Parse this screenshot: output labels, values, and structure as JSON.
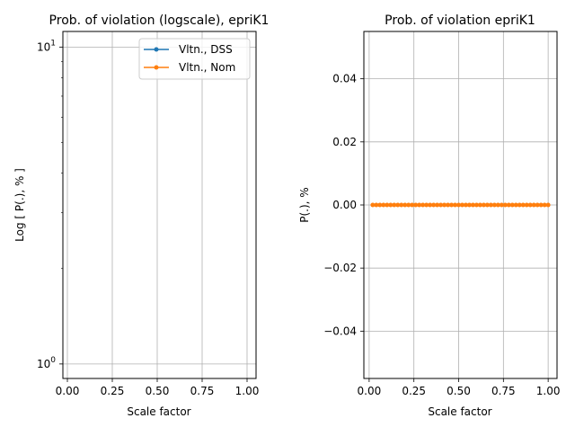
{
  "chart_data": [
    {
      "type": "line",
      "title": "Prob. of violation (logscale), epriK1",
      "xlabel": "Scale factor",
      "ylabel": "Log [ P(.), % ]",
      "yscale": "log",
      "xlim": [
        -0.025,
        1.05
      ],
      "ylim": [
        0.9,
        11.2
      ],
      "xticks": [
        0.0,
        0.25,
        0.5,
        0.75,
        1.0
      ],
      "xtick_labels": [
        "0.00",
        "0.25",
        "0.50",
        "0.75",
        "1.00"
      ],
      "yticks": [
        1,
        10
      ],
      "grid": true,
      "legend_position": "top-right",
      "series": [
        {
          "name": "Vltn., DSS",
          "color": "#1f77b4",
          "marker": "dot",
          "values": []
        },
        {
          "name": "Vltn., Nom",
          "color": "#ff7f0e",
          "marker": "dot",
          "values": []
        }
      ]
    },
    {
      "type": "line",
      "title": "Prob. of violation epriK1",
      "xlabel": "Scale factor",
      "ylabel": "P(.), %",
      "xlim": [
        -0.0295,
        1.0495
      ],
      "ylim": [
        -0.055,
        0.055
      ],
      "xticks": [
        0.0,
        0.25,
        0.5,
        0.75,
        1.0
      ],
      "xtick_labels": [
        "0.00",
        "0.25",
        "0.50",
        "0.75",
        "1.00"
      ],
      "yticks": [
        -0.04,
        -0.02,
        0.0,
        0.02,
        0.04
      ],
      "ytick_labels": [
        "−0.04",
        "−0.02",
        "0.00",
        "0.02",
        "0.04"
      ],
      "grid": true,
      "series": [
        {
          "name": "Vltn., Nom",
          "color": "#ff7f0e",
          "marker": "dot",
          "x": [
            0.02,
            0.04,
            0.06,
            0.08,
            0.1,
            0.12,
            0.14,
            0.16,
            0.18,
            0.2,
            0.22,
            0.24,
            0.26,
            0.28,
            0.3,
            0.32,
            0.34,
            0.36,
            0.38,
            0.4,
            0.42,
            0.44,
            0.46,
            0.48,
            0.5,
            0.52,
            0.54,
            0.56,
            0.58,
            0.6,
            0.62,
            0.64,
            0.66,
            0.68,
            0.7,
            0.72,
            0.74,
            0.76,
            0.78,
            0.8,
            0.82,
            0.84,
            0.86,
            0.88,
            0.9,
            0.92,
            0.94,
            0.96,
            0.98,
            1.0
          ],
          "y": [
            0,
            0,
            0,
            0,
            0,
            0,
            0,
            0,
            0,
            0,
            0,
            0,
            0,
            0,
            0,
            0,
            0,
            0,
            0,
            0,
            0,
            0,
            0,
            0,
            0,
            0,
            0,
            0,
            0,
            0,
            0,
            0,
            0,
            0,
            0,
            0,
            0,
            0,
            0,
            0,
            0,
            0,
            0,
            0,
            0,
            0,
            0,
            0,
            0,
            0
          ]
        }
      ]
    }
  ]
}
